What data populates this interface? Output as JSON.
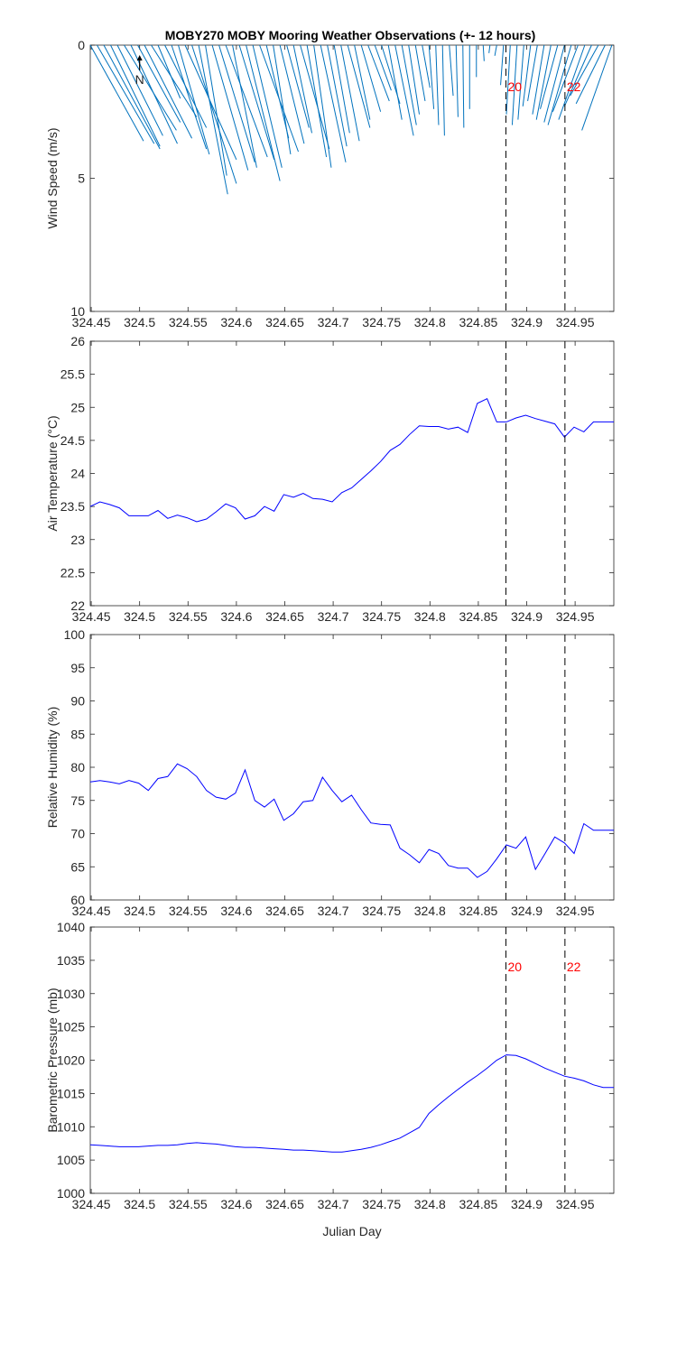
{
  "title": "MOBY270 MOBY Mooring Weather Observations (+- 12 hours)",
  "north_label": "N",
  "colors": {
    "line": "#0000ff",
    "wind": "#0072bd",
    "marker_text": "#ff0000",
    "axis": "#262626"
  },
  "markers": [
    {
      "x": 324.8785,
      "label": "20"
    },
    {
      "x": 324.9395,
      "label": "22"
    }
  ],
  "chart_data": [
    {
      "type": "quiver",
      "ylabel": "Wind Speed (m/s)",
      "xlim": [
        324.449,
        324.99
      ],
      "ylim": [
        10,
        0
      ],
      "y_reversed": true,
      "xticks": [
        324.45,
        324.5,
        324.55,
        324.6,
        324.65,
        324.7,
        324.75,
        324.8,
        324.85,
        324.9,
        324.95
      ],
      "xticklabels": [
        "324.45",
        "324.5",
        "324.55",
        "324.6",
        "324.65",
        "324.7",
        "324.75",
        "324.8",
        "324.85",
        "324.9",
        "324.95"
      ],
      "yticks": [
        0,
        5,
        10
      ],
      "yticklabels": [
        "0",
        "5",
        "10"
      ],
      "x": [
        324.449,
        324.456,
        324.463,
        324.47,
        324.477,
        324.484,
        324.491,
        324.498,
        324.505,
        324.512,
        324.519,
        324.526,
        324.533,
        324.54,
        324.547,
        324.554,
        324.561,
        324.568,
        324.575,
        324.582,
        324.589,
        324.596,
        324.603,
        324.61,
        324.617,
        324.624,
        324.631,
        324.638,
        324.645,
        324.652,
        324.659,
        324.666,
        324.673,
        324.68,
        324.687,
        324.694,
        324.701,
        324.708,
        324.715,
        324.722,
        324.729,
        324.736,
        324.743,
        324.75,
        324.757,
        324.764,
        324.771,
        324.778,
        324.785,
        324.792,
        324.799,
        324.806,
        324.813,
        324.82,
        324.827,
        324.834,
        324.841,
        324.848,
        324.855,
        324.862,
        324.869,
        324.876,
        324.883,
        324.89,
        324.897,
        324.904,
        324.911,
        324.918,
        324.925,
        324.932,
        324.939,
        324.946,
        324.953,
        324.96,
        324.967,
        324.974,
        324.981,
        324.988
      ],
      "u": [
        0.055,
        0.059,
        0.058,
        0.051,
        0.047,
        0.054,
        0.048,
        0.044,
        0.049,
        0.047,
        0.023,
        0.043,
        0.036,
        0.032,
        0.053,
        0.046,
        0.03,
        0.022,
        0.037,
        0.037,
        0.043,
        0.025,
        0.036,
        0.035,
        0.03,
        0.04,
        0.023,
        0.018,
        0.025,
        0.023,
        0.019,
        0.03,
        0.02,
        0.018,
        0.026,
        0.02,
        0.016,
        0.019,
        0.023,
        0.016,
        0.02,
        0.022,
        0.017,
        0.019,
        0.014,
        0.019,
        0.015,
        0.011,
        0.01,
        0.008,
        0.005,
        0.003,
        0.002,
        0.004,
        0.002,
        0.001,
        0.0,
        0.0,
        0.001,
        -0.001,
        -0.002,
        -0.003,
        -0.004,
        -0.005,
        -0.006,
        -0.008,
        -0.01,
        -0.012,
        -0.015,
        -0.018,
        -0.021,
        -0.024,
        -0.026,
        -0.027,
        -0.028,
        -0.029,
        -0.03,
        -0.031
      ],
      "v": [
        3.6,
        3.7,
        3.9,
        3.8,
        3.4,
        3.2,
        3.7,
        2.9,
        3.5,
        2.7,
        2.0,
        3.1,
        3.9,
        4.1,
        4.3,
        5.2,
        5.6,
        4.9,
        4.7,
        4.4,
        4.2,
        4.6,
        4.3,
        5.1,
        4.6,
        4.0,
        3.5,
        4.1,
        3.7,
        3.1,
        3.3,
        3.9,
        4.2,
        4.6,
        4.4,
        3.8,
        3.3,
        3.6,
        3.1,
        2.8,
        2.5,
        2.1,
        1.7,
        2.2,
        2.8,
        3.4,
        3.0,
        2.6,
        2.1,
        1.6,
        2.4,
        3.0,
        3.4,
        1.9,
        2.7,
        3.1,
        2.4,
        1.2,
        0.6,
        0.3,
        0.4,
        1.5,
        2.6,
        3.0,
        2.8,
        2.3,
        2.1,
        2.6,
        2.8,
        2.4,
        2.9,
        3.0,
        2.5,
        2.8,
        2.3,
        1.9,
        2.2,
        3.2
      ]
    },
    {
      "type": "line",
      "ylabel": "Air Temperature (°C)",
      "xlim": [
        324.449,
        324.99
      ],
      "ylim": [
        22,
        26
      ],
      "xticks": [
        324.45,
        324.5,
        324.55,
        324.6,
        324.65,
        324.7,
        324.75,
        324.8,
        324.85,
        324.9,
        324.95
      ],
      "xticklabels": [
        "324.45",
        "324.5",
        "324.55",
        "324.6",
        "324.65",
        "324.7",
        "324.75",
        "324.8",
        "324.85",
        "324.9",
        "324.95"
      ],
      "yticks": [
        22,
        22.5,
        23,
        23.5,
        24,
        24.5,
        25,
        25.5,
        26
      ],
      "yticklabels": [
        "22",
        "22.5",
        "23",
        "23.5",
        "24",
        "24.5",
        "25",
        "25.5",
        "26"
      ],
      "x": [
        324.449,
        324.459,
        324.469,
        324.479,
        324.489,
        324.499,
        324.509,
        324.519,
        324.529,
        324.539,
        324.549,
        324.559,
        324.569,
        324.579,
        324.589,
        324.599,
        324.609,
        324.619,
        324.629,
        324.639,
        324.649,
        324.659,
        324.669,
        324.679,
        324.689,
        324.699,
        324.709,
        324.719,
        324.729,
        324.739,
        324.749,
        324.759,
        324.769,
        324.779,
        324.789,
        324.799,
        324.809,
        324.819,
        324.829,
        324.839,
        324.849,
        324.859,
        324.869,
        324.879,
        324.889,
        324.899,
        324.909,
        324.919,
        324.929,
        324.939,
        324.949,
        324.959,
        324.969,
        324.979,
        324.99
      ],
      "values": [
        23.5,
        23.57,
        23.53,
        23.48,
        23.36,
        23.36,
        23.36,
        23.44,
        23.32,
        23.37,
        23.33,
        23.27,
        23.31,
        23.42,
        23.54,
        23.48,
        23.31,
        23.36,
        23.5,
        23.43,
        23.68,
        23.64,
        23.7,
        23.62,
        23.61,
        23.57,
        23.71,
        23.78,
        23.91,
        24.04,
        24.18,
        24.35,
        24.44,
        24.59,
        24.72,
        24.71,
        24.71,
        24.67,
        24.7,
        24.62,
        25.06,
        25.13,
        24.78,
        24.78,
        24.84,
        24.88,
        24.83,
        24.79,
        24.75,
        24.55,
        24.7,
        24.63,
        24.78,
        24.78,
        24.78
      ]
    },
    {
      "type": "line",
      "ylabel": "Relative Humidity (%)",
      "xlim": [
        324.449,
        324.99
      ],
      "ylim": [
        60,
        100
      ],
      "xticks": [
        324.45,
        324.5,
        324.55,
        324.6,
        324.65,
        324.7,
        324.75,
        324.8,
        324.85,
        324.9,
        324.95
      ],
      "xticklabels": [
        "324.45",
        "324.5",
        "324.55",
        "324.6",
        "324.65",
        "324.7",
        "324.75",
        "324.8",
        "324.85",
        "324.9",
        "324.95"
      ],
      "yticks": [
        60,
        65,
        70,
        75,
        80,
        85,
        90,
        95,
        100
      ],
      "yticklabels": [
        "60",
        "65",
        "70",
        "75",
        "80",
        "85",
        "90",
        "95",
        "100"
      ],
      "x": [
        324.449,
        324.459,
        324.469,
        324.479,
        324.489,
        324.499,
        324.509,
        324.519,
        324.529,
        324.539,
        324.549,
        324.559,
        324.569,
        324.579,
        324.589,
        324.599,
        324.609,
        324.619,
        324.629,
        324.639,
        324.649,
        324.659,
        324.669,
        324.679,
        324.689,
        324.699,
        324.709,
        324.719,
        324.729,
        324.739,
        324.749,
        324.759,
        324.769,
        324.779,
        324.789,
        324.799,
        324.809,
        324.819,
        324.829,
        324.839,
        324.849,
        324.859,
        324.869,
        324.879,
        324.889,
        324.899,
        324.909,
        324.919,
        324.929,
        324.939,
        324.949,
        324.959,
        324.969,
        324.979,
        324.99
      ],
      "values": [
        77.8,
        78.0,
        77.8,
        77.5,
        78.0,
        77.6,
        76.5,
        78.3,
        78.6,
        80.5,
        79.8,
        78.6,
        76.5,
        75.5,
        75.2,
        76.1,
        79.6,
        75.0,
        74.0,
        75.2,
        72.0,
        73.0,
        74.8,
        75.0,
        78.5,
        76.5,
        74.8,
        75.8,
        73.6,
        71.6,
        71.4,
        71.3,
        67.8,
        66.8,
        65.6,
        67.6,
        67.0,
        65.2,
        64.8,
        64.8,
        63.4,
        64.3,
        66.2,
        68.3,
        67.8,
        69.5,
        64.6,
        67.0,
        69.5,
        68.6,
        67.0,
        71.5,
        70.5,
        70.5,
        70.5
      ]
    },
    {
      "type": "line",
      "ylabel": "Barometric Pressure (mb)",
      "xlabel": "Julian Day",
      "xlim": [
        324.449,
        324.99
      ],
      "ylim": [
        1000,
        1040
      ],
      "xticks": [
        324.45,
        324.5,
        324.55,
        324.6,
        324.65,
        324.7,
        324.75,
        324.8,
        324.85,
        324.9,
        324.95
      ],
      "xticklabels": [
        "324.45",
        "324.5",
        "324.55",
        "324.6",
        "324.65",
        "324.7",
        "324.75",
        "324.8",
        "324.85",
        "324.9",
        "324.95"
      ],
      "yticks": [
        1000,
        1005,
        1010,
        1015,
        1020,
        1025,
        1030,
        1035,
        1040
      ],
      "yticklabels": [
        "1000",
        "1005",
        "1010",
        "1015",
        "1020",
        "1025",
        "1030",
        "1035",
        "1040"
      ],
      "x": [
        324.449,
        324.459,
        324.469,
        324.479,
        324.489,
        324.499,
        324.509,
        324.519,
        324.529,
        324.539,
        324.549,
        324.559,
        324.569,
        324.579,
        324.589,
        324.599,
        324.609,
        324.619,
        324.629,
        324.639,
        324.649,
        324.659,
        324.669,
        324.679,
        324.689,
        324.699,
        324.709,
        324.719,
        324.729,
        324.739,
        324.749,
        324.759,
        324.769,
        324.779,
        324.789,
        324.799,
        324.809,
        324.819,
        324.829,
        324.839,
        324.849,
        324.859,
        324.869,
        324.879,
        324.889,
        324.899,
        324.909,
        324.919,
        324.929,
        324.939,
        324.949,
        324.959,
        324.969,
        324.979,
        324.99
      ],
      "values": [
        1007.3,
        1007.2,
        1007.1,
        1007.0,
        1007.0,
        1007.0,
        1007.1,
        1007.2,
        1007.2,
        1007.3,
        1007.5,
        1007.6,
        1007.5,
        1007.4,
        1007.2,
        1007.0,
        1006.9,
        1006.9,
        1006.8,
        1006.7,
        1006.6,
        1006.5,
        1006.5,
        1006.4,
        1006.3,
        1006.2,
        1006.2,
        1006.4,
        1006.6,
        1006.9,
        1007.3,
        1007.8,
        1008.3,
        1009.1,
        1009.9,
        1012.0,
        1013.3,
        1014.5,
        1015.6,
        1016.7,
        1017.7,
        1018.8,
        1020.0,
        1020.8,
        1020.7,
        1020.2,
        1019.5,
        1018.8,
        1018.2,
        1017.6,
        1017.3,
        1016.9,
        1016.3,
        1015.9,
        1015.9
      ]
    }
  ]
}
